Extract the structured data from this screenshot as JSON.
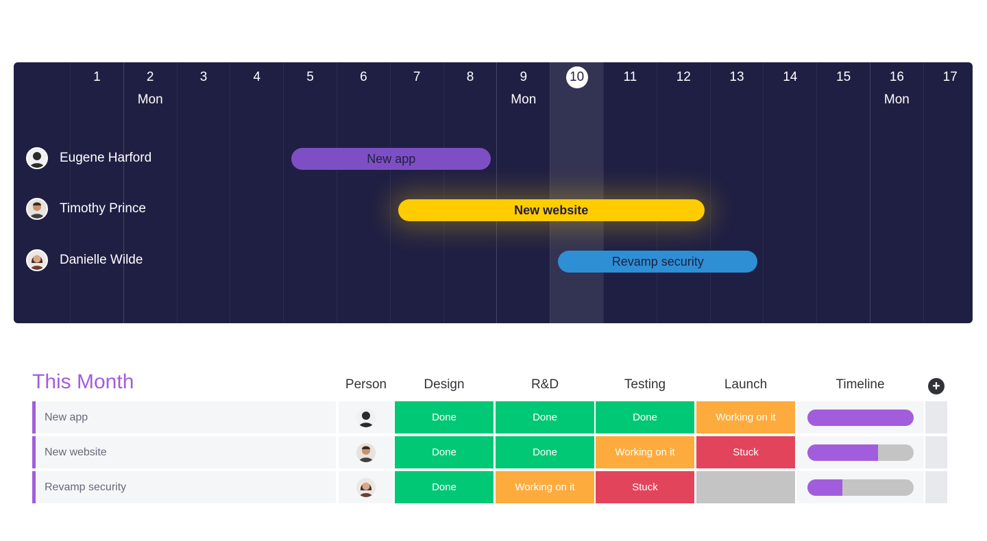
{
  "colors": {
    "panel_bg": "#1f1f43",
    "accent_purple": "#a25ddc",
    "done_green": "#00c875",
    "working_orange": "#fdab3d",
    "stuck_red": "#e2445c",
    "empty_gray": "#c4c4c4",
    "bar_purple": "#7e4fc4",
    "bar_yellow": "#ffcc00",
    "bar_blue": "#2e8fd4"
  },
  "timeline": {
    "days": [
      {
        "num": "1",
        "weekday": ""
      },
      {
        "num": "2",
        "weekday": "Mon"
      },
      {
        "num": "3",
        "weekday": ""
      },
      {
        "num": "4",
        "weekday": ""
      },
      {
        "num": "5",
        "weekday": ""
      },
      {
        "num": "6",
        "weekday": ""
      },
      {
        "num": "7",
        "weekday": ""
      },
      {
        "num": "8",
        "weekday": ""
      },
      {
        "num": "9",
        "weekday": "Mon"
      },
      {
        "num": "10",
        "weekday": ""
      },
      {
        "num": "11",
        "weekday": ""
      },
      {
        "num": "12",
        "weekday": ""
      },
      {
        "num": "13",
        "weekday": ""
      },
      {
        "num": "14",
        "weekday": ""
      },
      {
        "num": "15",
        "weekday": ""
      },
      {
        "num": "16",
        "weekday": "Mon"
      },
      {
        "num": "17",
        "weekday": ""
      }
    ],
    "today": "10",
    "people": [
      {
        "name": "Eugene Harford",
        "task": "New app",
        "start_day": 5,
        "end_day": 8,
        "color": "#7e4fc4"
      },
      {
        "name": "Timothy Prince",
        "task": "New website",
        "start_day": 7,
        "end_day": 12,
        "color": "#ffcc00"
      },
      {
        "name": "Danielle Wilde",
        "task": "Revamp security",
        "start_day": 10,
        "end_day": 13,
        "color": "#2e8fd4"
      }
    ]
  },
  "board": {
    "title": "This Month",
    "columns": [
      "Person",
      "Design",
      "R&D",
      "Testing",
      "Launch",
      "Timeline"
    ],
    "add_column_icon": "plus-circle-icon",
    "rows": [
      {
        "name": "New app",
        "design": "Done",
        "rnd": "Done",
        "testing": "Done",
        "launch": "Working on it",
        "timeline_progress": 1.0
      },
      {
        "name": "New website",
        "design": "Done",
        "rnd": "Done",
        "testing": "Working on it",
        "launch": "Stuck",
        "timeline_progress": 0.67
      },
      {
        "name": "Revamp security",
        "design": "Done",
        "rnd": "Working on it",
        "testing": "Stuck",
        "launch": "",
        "timeline_progress": 0.33
      }
    ]
  }
}
